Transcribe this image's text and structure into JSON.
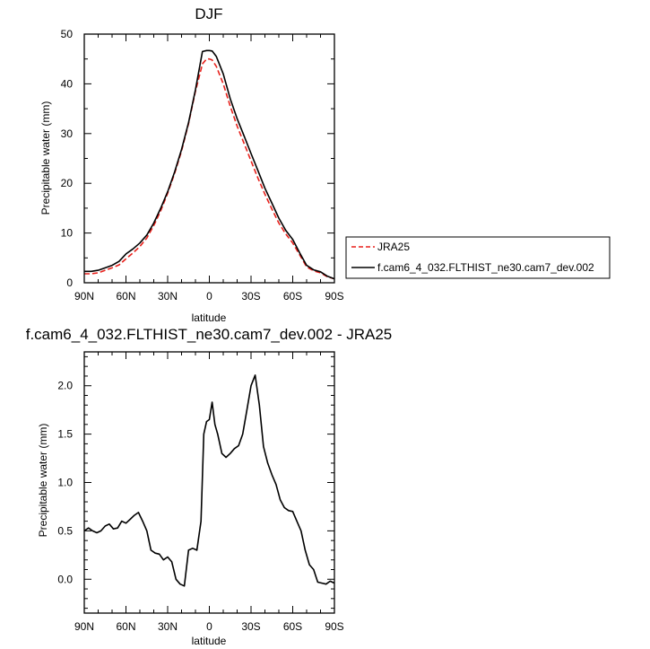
{
  "chart_data": [
    {
      "type": "line",
      "title": "DJF",
      "xlabel": "latitude",
      "ylabel": "Precipitable water (mm)",
      "xlim": [
        90,
        -90
      ],
      "ylim": [
        0,
        50
      ],
      "xticks": [
        90,
        60,
        30,
        0,
        -30,
        -60,
        -90
      ],
      "xticklabels": [
        "90N",
        "60N",
        "30N",
        "0",
        "30S",
        "60S",
        "90S"
      ],
      "yticks": [
        0,
        10,
        20,
        30,
        40,
        50
      ],
      "yticklabels": [
        "0",
        "10",
        "20",
        "30",
        "40",
        "50"
      ],
      "legend_position": "right",
      "series": [
        {
          "name": "JRA25",
          "color": "#e8211c",
          "dash": true,
          "x": [
            90,
            85,
            80,
            75,
            70,
            65,
            60,
            55,
            50,
            45,
            40,
            35,
            30,
            25,
            20,
            15,
            10,
            5,
            2,
            0,
            -2,
            -5,
            -10,
            -15,
            -20,
            -25,
            -30,
            -35,
            -40,
            -45,
            -50,
            -55,
            -60,
            -65,
            -70,
            -75,
            -80,
            -85,
            -90
          ],
          "y": [
            1.8,
            1.8,
            2.0,
            2.5,
            3.0,
            3.6,
            4.8,
            6.0,
            7.3,
            9.0,
            11.5,
            14.5,
            18.0,
            22.0,
            26.5,
            32.0,
            38.5,
            44.0,
            45.0,
            45.0,
            44.8,
            43.5,
            40.0,
            35.5,
            31.5,
            28.0,
            24.5,
            21.0,
            17.8,
            14.8,
            12.0,
            9.8,
            8.0,
            5.6,
            3.2,
            2.4,
            2.0,
            1.2,
            0.8
          ]
        },
        {
          "name": "f.cam6_4_032.FLTHIST_ne30.cam7_dev.002",
          "color": "#000000",
          "dash": false,
          "x": [
            90,
            85,
            80,
            75,
            70,
            65,
            60,
            55,
            50,
            45,
            40,
            35,
            30,
            25,
            20,
            15,
            10,
            5,
            2,
            0,
            -2,
            -5,
            -10,
            -15,
            -20,
            -25,
            -30,
            -35,
            -40,
            -45,
            -50,
            -55,
            -60,
            -65,
            -70,
            -75,
            -80,
            -85,
            -90
          ],
          "y": [
            2.3,
            2.3,
            2.5,
            3.0,
            3.5,
            4.3,
            5.8,
            6.8,
            8.0,
            9.6,
            12.0,
            15.0,
            18.3,
            22.3,
            26.8,
            32.2,
            38.8,
            46.5,
            46.7,
            46.7,
            46.6,
            45.5,
            42.0,
            37.0,
            33.0,
            29.5,
            26.0,
            22.5,
            19.0,
            16.0,
            13.0,
            10.5,
            8.7,
            6.0,
            3.5,
            2.6,
            2.2,
            1.3,
            0.8
          ]
        }
      ]
    },
    {
      "type": "line",
      "title": "f.cam6_4_032.FLTHIST_ne30.cam7_dev.002 - JRA25",
      "xlabel": "latitude",
      "ylabel": "Precipitable water (mm)",
      "xlim": [
        90,
        -90
      ],
      "ylim": [
        -0.35,
        2.35
      ],
      "xticks": [
        90,
        60,
        30,
        0,
        -30,
        -60,
        -90
      ],
      "xticklabels": [
        "90N",
        "60N",
        "30N",
        "0",
        "30S",
        "60S",
        "90S"
      ],
      "yticks": [
        0.0,
        0.5,
        1.0,
        1.5,
        2.0
      ],
      "yticklabels": [
        "0.0",
        "0.5",
        "1.0",
        "1.5",
        "2.0"
      ],
      "series": [
        {
          "color": "#000000",
          "x": [
            90,
            87,
            84,
            81,
            78,
            75,
            72,
            69,
            66,
            63,
            60,
            57,
            54,
            51,
            48,
            45,
            42,
            39,
            36,
            33,
            30,
            27,
            24,
            21,
            18,
            15,
            12,
            9,
            6,
            4,
            2,
            0,
            -2,
            -4,
            -6,
            -9,
            -12,
            -15,
            -18,
            -21,
            -24,
            -27,
            -30,
            -33,
            -36,
            -39,
            -42,
            -45,
            -48,
            -51,
            -54,
            -57,
            -60,
            -63,
            -66,
            -69,
            -72,
            -75,
            -78,
            -81,
            -84,
            -87,
            -90
          ],
          "y": [
            0.5,
            0.53,
            0.5,
            0.48,
            0.5,
            0.55,
            0.57,
            0.52,
            0.53,
            0.6,
            0.58,
            0.62,
            0.66,
            0.69,
            0.6,
            0.5,
            0.3,
            0.27,
            0.26,
            0.2,
            0.23,
            0.18,
            0.0,
            -0.05,
            -0.07,
            0.3,
            0.32,
            0.3,
            0.6,
            1.5,
            1.63,
            1.65,
            1.83,
            1.6,
            1.5,
            1.3,
            1.26,
            1.3,
            1.35,
            1.38,
            1.5,
            1.75,
            2.0,
            2.11,
            1.8,
            1.37,
            1.2,
            1.08,
            0.98,
            0.82,
            0.74,
            0.71,
            0.7,
            0.6,
            0.5,
            0.3,
            0.15,
            0.1,
            -0.03,
            -0.04,
            -0.05,
            -0.02,
            -0.04
          ]
        }
      ]
    }
  ]
}
